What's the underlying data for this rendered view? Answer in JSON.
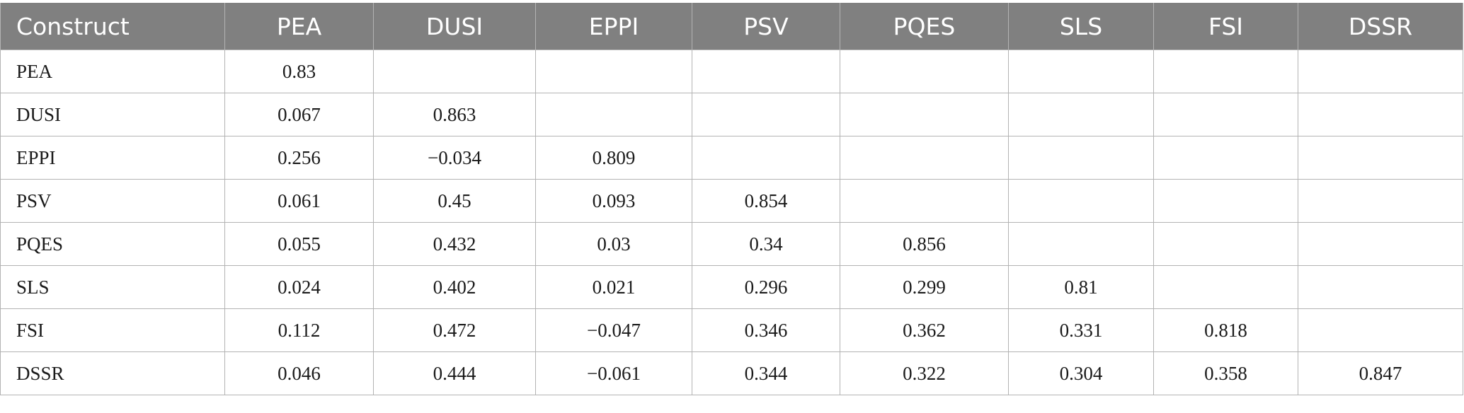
{
  "table": {
    "headers": [
      "Construct",
      "PEA",
      "DUSI",
      "EPPI",
      "PSV",
      "PQES",
      "SLS",
      "FSI",
      "DSSR"
    ],
    "rows": [
      [
        "PEA",
        "0.83",
        "",
        "",
        "",
        "",
        "",
        "",
        ""
      ],
      [
        "DUSI",
        "0.067",
        "0.863",
        "",
        "",
        "",
        "",
        "",
        ""
      ],
      [
        "EPPI",
        "0.256",
        "−0.034",
        "0.809",
        "",
        "",
        "",
        "",
        ""
      ],
      [
        "PSV",
        "0.061",
        "0.45",
        "0.093",
        "0.854",
        "",
        "",
        "",
        ""
      ],
      [
        "PQES",
        "0.055",
        "0.432",
        "0.03",
        "0.34",
        "0.856",
        "",
        "",
        ""
      ],
      [
        "SLS",
        "0.024",
        "0.402",
        "0.021",
        "0.296",
        "0.299",
        "0.81",
        "",
        ""
      ],
      [
        "FSI",
        "0.112",
        "0.472",
        "−0.047",
        "0.346",
        "0.362",
        "0.331",
        "0.818",
        ""
      ],
      [
        "DSSR",
        "0.046",
        "0.444",
        "−0.061",
        "0.344",
        "0.322",
        "0.304",
        "0.358",
        "0.847"
      ]
    ]
  },
  "colors": {
    "header_background": "#808080",
    "header_text": "#ffffff",
    "grid_lines": "#b3b3b3",
    "body_text": "#1a1a1a"
  }
}
